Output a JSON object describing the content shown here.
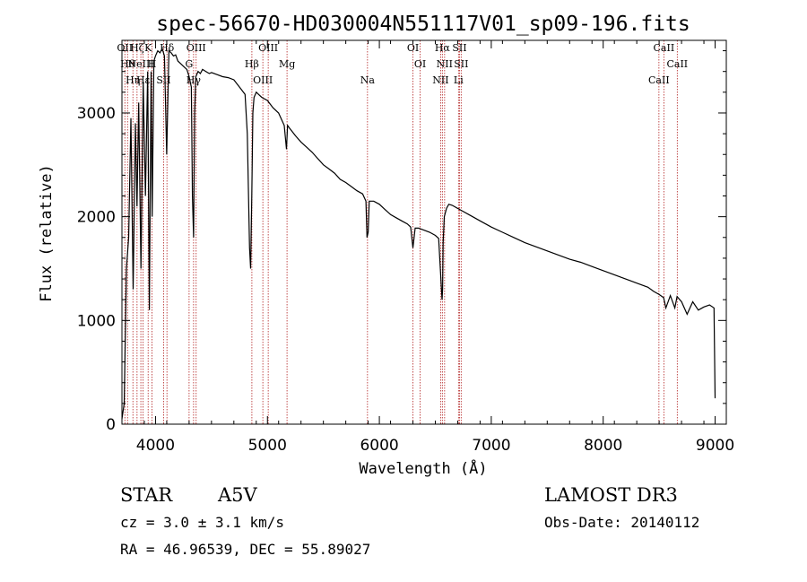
{
  "chart_data": {
    "type": "line",
    "title": "spec-56670-HD030004N551117V01_sp09-196.fits",
    "xlabel": "Wavelength (Å)",
    "ylabel": "Flux (relative)",
    "xlim": [
      3700,
      9100
    ],
    "ylim": [
      0,
      3700
    ],
    "xticks": [
      "4000",
      "5000",
      "6000",
      "7000",
      "8000",
      "9000"
    ],
    "yticks": [
      "0",
      "1000",
      "2000",
      "3000"
    ],
    "series": [
      {
        "name": "spectrum",
        "x": [
          3700,
          3720,
          3740,
          3760,
          3780,
          3800,
          3820,
          3835,
          3850,
          3870,
          3890,
          3910,
          3930,
          3945,
          3960,
          3970,
          3985,
          4000,
          4020,
          4040,
          4060,
          4080,
          4100,
          4120,
          4140,
          4160,
          4180,
          4200,
          4220,
          4250,
          4280,
          4300,
          4320,
          4330,
          4340,
          4350,
          4360,
          4380,
          4400,
          4420,
          4450,
          4480,
          4500,
          4550,
          4600,
          4650,
          4700,
          4750,
          4800,
          4820,
          4840,
          4850,
          4860,
          4870,
          4880,
          4900,
          4920,
          4950,
          5000,
          5050,
          5100,
          5150,
          5170,
          5180,
          5200,
          5250,
          5300,
          5350,
          5400,
          5450,
          5500,
          5550,
          5600,
          5650,
          5700,
          5750,
          5800,
          5850,
          5880,
          5890,
          5900,
          5910,
          5950,
          6000,
          6050,
          6100,
          6150,
          6200,
          6250,
          6280,
          6300,
          6320,
          6350,
          6400,
          6450,
          6500,
          6530,
          6550,
          6560,
          6565,
          6570,
          6580,
          6600,
          6620,
          6650,
          6700,
          6750,
          6800,
          6850,
          6900,
          6950,
          7000,
          7100,
          7200,
          7300,
          7400,
          7500,
          7600,
          7700,
          7800,
          7900,
          8000,
          8100,
          8200,
          8300,
          8400,
          8450,
          8500,
          8540,
          8560,
          8600,
          8640,
          8660,
          8700,
          8750,
          8800,
          8850,
          8900,
          8950,
          8990,
          9000
        ],
        "values": [
          50,
          200,
          1500,
          1800,
          2950,
          1300,
          2900,
          2100,
          3100,
          1500,
          3300,
          2200,
          3400,
          1100,
          3400,
          2000,
          3500,
          3550,
          3600,
          3580,
          3620,
          3550,
          2600,
          3600,
          3580,
          3550,
          3560,
          3500,
          3480,
          3450,
          3420,
          3350,
          3250,
          2200,
          1800,
          3000,
          3350,
          3400,
          3380,
          3420,
          3400,
          3380,
          3390,
          3370,
          3350,
          3340,
          3320,
          3250,
          3180,
          2800,
          1700,
          1500,
          2200,
          3000,
          3150,
          3200,
          3180,
          3150,
          3120,
          3050,
          3000,
          2880,
          2650,
          2880,
          2850,
          2780,
          2720,
          2670,
          2620,
          2560,
          2500,
          2460,
          2420,
          2360,
          2330,
          2290,
          2250,
          2220,
          2150,
          1800,
          1850,
          2150,
          2150,
          2120,
          2070,
          2020,
          1990,
          1960,
          1930,
          1900,
          1700,
          1890,
          1890,
          1870,
          1850,
          1820,
          1790,
          1400,
          1200,
          1300,
          1750,
          2000,
          2080,
          2120,
          2110,
          2080,
          2050,
          2020,
          1990,
          1960,
          1930,
          1900,
          1850,
          1800,
          1750,
          1710,
          1670,
          1630,
          1590,
          1560,
          1520,
          1480,
          1440,
          1400,
          1360,
          1320,
          1280,
          1250,
          1220,
          1120,
          1240,
          1120,
          1230,
          1180,
          1060,
          1180,
          1100,
          1130,
          1150,
          1120,
          250
        ]
      }
    ],
    "lines": [
      {
        "wave": 3726,
        "label": "OII"
      },
      {
        "wave": 3750,
        "label": "Hθ"
      },
      {
        "wave": 3798,
        "label": "Hη"
      },
      {
        "wave": 3835,
        "label": "Hζ"
      },
      {
        "wave": 3869,
        "label": "NeIII"
      },
      {
        "wave": 3889,
        "label": "Hε"
      },
      {
        "wave": 3934,
        "label": "K"
      },
      {
        "wave": 3969,
        "label": "H"
      },
      {
        "wave": 4072,
        "label": "SII"
      },
      {
        "wave": 4102,
        "label": "Hδ"
      },
      {
        "wave": 4300,
        "label": "G"
      },
      {
        "wave": 4340,
        "label": "Hγ"
      },
      {
        "wave": 4363,
        "label": "OIII"
      },
      {
        "wave": 4861,
        "label": "Hβ"
      },
      {
        "wave": 4959,
        "label": "OIII"
      },
      {
        "wave": 5007,
        "label": "OIII"
      },
      {
        "wave": 5175,
        "label": "Mg"
      },
      {
        "wave": 5894,
        "label": "Na"
      },
      {
        "wave": 6300,
        "label": "OI"
      },
      {
        "wave": 6364,
        "label": "OI"
      },
      {
        "wave": 6548,
        "label": "NII"
      },
      {
        "wave": 6563,
        "label": "Hα"
      },
      {
        "wave": 6583,
        "label": "NII"
      },
      {
        "wave": 6707,
        "label": "Li"
      },
      {
        "wave": 6716,
        "label": "SII"
      },
      {
        "wave": 6731,
        "label": "SII"
      },
      {
        "wave": 8498,
        "label": "CaII"
      },
      {
        "wave": 8542,
        "label": "CaII"
      },
      {
        "wave": 8662,
        "label": "CaII"
      }
    ]
  },
  "footer": {
    "object_class": "STAR",
    "subclass": "A5V",
    "cz": "cz = 3.0 ± 3.1 km/s",
    "radec": "RA =  46.96539, DEC =  55.89027",
    "survey": "LAMOST DR3",
    "obs_date": "Obs-Date: 20140112"
  },
  "colors": {
    "line_markers": "#b22222",
    "spectrum": "#000000"
  }
}
